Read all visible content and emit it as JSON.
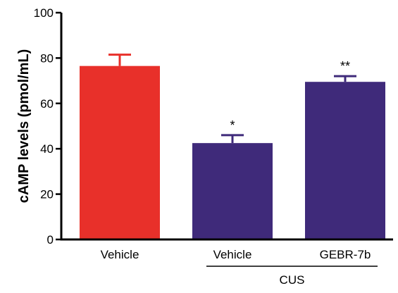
{
  "chart_data": {
    "type": "bar",
    "title": "",
    "xlabel": "",
    "ylabel": "cAMP levels (pmol/mL)",
    "ylim": [
      0,
      100
    ],
    "yticks": [
      0,
      20,
      40,
      60,
      80,
      100
    ],
    "grid": false,
    "categories": [
      "Vehicle",
      "Vehicle",
      "GEBR-7b"
    ],
    "values": [
      76.5,
      42.5,
      69.5
    ],
    "errors": [
      5,
      3.5,
      2.5
    ],
    "colors": [
      "#e8302a",
      "#3f2a7a",
      "#3f2a7a"
    ],
    "annotations": [
      "",
      "*",
      "**"
    ],
    "group_labels": [
      {
        "label": "CUS",
        "categories": [
          1,
          2
        ]
      }
    ]
  }
}
